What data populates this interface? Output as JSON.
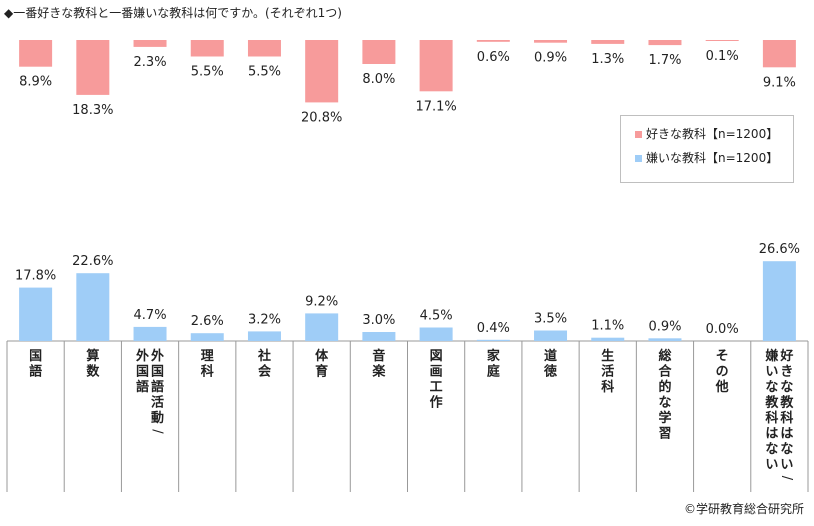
{
  "title": "◆一番好きな教科と一番嫌いな教科は何ですか。(それぞれ1つ)",
  "credit": "©学研教育総合研究所",
  "colors": {
    "like": "#f79b9b",
    "dislike": "#9fcdf7",
    "divider": "#999999",
    "text": "#222222"
  },
  "chart_data": {
    "type": "bar",
    "categories": [
      "国語",
      "算数",
      "外国語活動/外国語",
      "理科",
      "社会",
      "体育",
      "音楽",
      "図画工作",
      "家庭",
      "道徳",
      "生活科",
      "総合的な学習",
      "その他",
      "好きな教科はない/嫌いな教科はない"
    ],
    "category_label_columns": [
      [
        "国語"
      ],
      [
        "算数"
      ],
      [
        "外国語活動/",
        "外国語"
      ],
      [
        "理科"
      ],
      [
        "社会"
      ],
      [
        "体育"
      ],
      [
        "音楽"
      ],
      [
        "図画工作"
      ],
      [
        "家庭"
      ],
      [
        "道徳"
      ],
      [
        "生活科"
      ],
      [
        "総合的な学習"
      ],
      [
        "その他"
      ],
      [
        "好きな教科はない/",
        "嫌いな教科はない"
      ]
    ],
    "series": [
      {
        "name": "好きな教科【n=1200】",
        "values": [
          8.9,
          18.3,
          2.3,
          5.5,
          5.5,
          20.8,
          8.0,
          17.1,
          0.6,
          0.9,
          1.3,
          1.7,
          0.1,
          9.1
        ]
      },
      {
        "name": "嫌いな教科【n=1200】",
        "values": [
          17.8,
          22.6,
          4.7,
          2.6,
          3.2,
          9.2,
          3.0,
          4.5,
          0.4,
          3.5,
          1.1,
          0.9,
          0.0,
          26.6
        ]
      }
    ],
    "value_labels": [
      [
        "8.9%",
        "18.3%",
        "2.3%",
        "5.5%",
        "5.5%",
        "20.8%",
        "8.0%",
        "17.1%",
        "0.6%",
        "0.9%",
        "1.3%",
        "1.7%",
        "0.1%",
        "9.1%"
      ],
      [
        "17.8%",
        "22.6%",
        "4.7%",
        "2.6%",
        "3.2%",
        "9.2%",
        "3.0%",
        "4.5%",
        "0.4%",
        "3.5%",
        "1.1%",
        "0.9%",
        "0.0%",
        "26.6%"
      ]
    ],
    "like_bars": "hang down from top",
    "dislike_bars": "rise up from bottom",
    "legend_position": "right, upper middle",
    "grid": false
  }
}
